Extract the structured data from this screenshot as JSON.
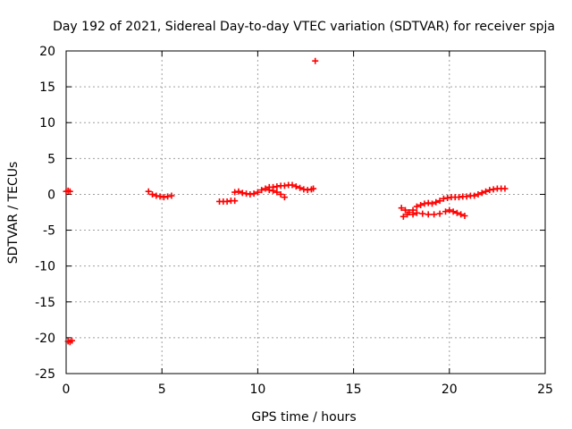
{
  "chart_data": {
    "type": "scatter",
    "title": "Day 192 of 2021, Sidereal Day-to-day VTEC variation (SDTVAR) for receiver spja",
    "xlabel": "GPS time / hours",
    "ylabel": "SDTVAR / TECUs",
    "xlim": [
      0,
      25
    ],
    "ylim": [
      -25,
      20
    ],
    "xticks": [
      0,
      5,
      10,
      15,
      20,
      25
    ],
    "yticks": [
      -25,
      -20,
      -15,
      -10,
      -5,
      0,
      5,
      10,
      15,
      20
    ],
    "grid": true,
    "marker": "+",
    "color": "#ff0000",
    "series": [
      {
        "name": "SDTVAR",
        "points": [
          [
            0.0,
            0.4
          ],
          [
            0.1,
            0.5
          ],
          [
            0.2,
            0.4
          ],
          [
            0.1,
            -20.5
          ],
          [
            0.2,
            -20.6
          ],
          [
            0.3,
            -20.4
          ],
          [
            4.3,
            0.4
          ],
          [
            4.5,
            0.0
          ],
          [
            4.7,
            -0.2
          ],
          [
            4.9,
            -0.3
          ],
          [
            5.1,
            -0.4
          ],
          [
            5.3,
            -0.3
          ],
          [
            5.5,
            -0.2
          ],
          [
            8.0,
            -1.0
          ],
          [
            8.2,
            -1.0
          ],
          [
            8.4,
            -1.0
          ],
          [
            8.6,
            -0.9
          ],
          [
            8.8,
            -0.9
          ],
          [
            8.8,
            0.3
          ],
          [
            9.0,
            0.4
          ],
          [
            9.2,
            0.2
          ],
          [
            9.4,
            0.1
          ],
          [
            9.6,
            0.0
          ],
          [
            9.8,
            0.1
          ],
          [
            10.0,
            0.3
          ],
          [
            10.2,
            0.6
          ],
          [
            10.4,
            0.8
          ],
          [
            10.6,
            1.0
          ],
          [
            10.8,
            1.0
          ],
          [
            11.0,
            1.1
          ],
          [
            11.2,
            1.2
          ],
          [
            11.4,
            1.2
          ],
          [
            11.6,
            1.3
          ],
          [
            11.8,
            1.3
          ],
          [
            12.0,
            1.1
          ],
          [
            12.2,
            0.9
          ],
          [
            12.4,
            0.7
          ],
          [
            12.6,
            0.6
          ],
          [
            12.8,
            0.7
          ],
          [
            12.9,
            0.8
          ],
          [
            10.6,
            0.6
          ],
          [
            10.8,
            0.5
          ],
          [
            11.0,
            0.3
          ],
          [
            11.2,
            0.0
          ],
          [
            11.4,
            -0.4
          ],
          [
            13.0,
            18.6
          ],
          [
            17.5,
            -1.9
          ],
          [
            17.7,
            -2.2
          ],
          [
            17.9,
            -2.5
          ],
          [
            18.1,
            -2.8
          ],
          [
            17.6,
            -3.1
          ],
          [
            17.8,
            -2.8
          ],
          [
            18.1,
            -2.2
          ],
          [
            18.3,
            -1.7
          ],
          [
            18.5,
            -1.5
          ],
          [
            18.7,
            -1.3
          ],
          [
            18.9,
            -1.2
          ],
          [
            19.1,
            -1.3
          ],
          [
            19.3,
            -1.1
          ],
          [
            19.5,
            -0.9
          ],
          [
            19.7,
            -0.6
          ],
          [
            19.9,
            -0.5
          ],
          [
            20.1,
            -0.4
          ],
          [
            20.3,
            -0.4
          ],
          [
            20.5,
            -0.4
          ],
          [
            20.7,
            -0.3
          ],
          [
            20.9,
            -0.3
          ],
          [
            21.1,
            -0.2
          ],
          [
            21.3,
            -0.2
          ],
          [
            21.5,
            0.0
          ],
          [
            21.7,
            0.2
          ],
          [
            21.9,
            0.4
          ],
          [
            22.1,
            0.6
          ],
          [
            22.3,
            0.7
          ],
          [
            22.5,
            0.8
          ],
          [
            22.7,
            0.8
          ],
          [
            22.9,
            0.8
          ],
          [
            18.3,
            -2.6
          ],
          [
            18.6,
            -2.7
          ],
          [
            18.9,
            -2.8
          ],
          [
            19.2,
            -2.8
          ],
          [
            19.5,
            -2.7
          ],
          [
            19.8,
            -2.4
          ],
          [
            20.0,
            -2.2
          ],
          [
            20.2,
            -2.4
          ],
          [
            20.4,
            -2.6
          ],
          [
            20.6,
            -2.8
          ],
          [
            20.8,
            -3.0
          ]
        ]
      }
    ]
  }
}
